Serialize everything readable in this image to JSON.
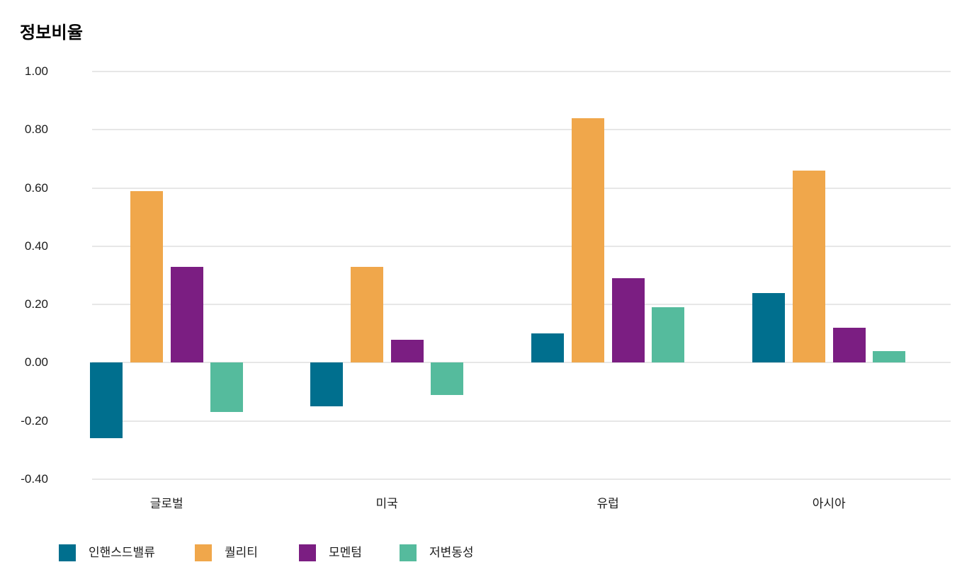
{
  "chart_data": {
    "type": "bar",
    "title": "정보비율",
    "categories": [
      "글로벌",
      "미국",
      "유럽",
      "아시아"
    ],
    "series": [
      {
        "name": "인핸스드밸류",
        "color": "#006F8E",
        "values": [
          -0.26,
          -0.15,
          0.1,
          0.24
        ]
      },
      {
        "name": "퀄리티",
        "color": "#F0A74B",
        "values": [
          0.59,
          0.33,
          0.84,
          0.66
        ]
      },
      {
        "name": "모멘텀",
        "color": "#7B1E82",
        "values": [
          0.33,
          0.08,
          0.29,
          0.12
        ]
      },
      {
        "name": "저변동성",
        "color": "#55BB9D",
        "values": [
          -0.17,
          -0.11,
          0.19,
          0.04
        ]
      }
    ],
    "xlabel": "",
    "ylabel": "",
    "ylim": [
      -0.4,
      1.0
    ],
    "yticks": [
      "1.00",
      "0.80",
      "0.60",
      "0.40",
      "0.20",
      "0.00",
      "-0.20",
      "-0.40"
    ],
    "grid": "horizontal",
    "gridline_color": "#E7E7E7",
    "background_color": "#FFFFFF",
    "text_color": "#1B1B1B",
    "legend_position": "bottom-left"
  }
}
